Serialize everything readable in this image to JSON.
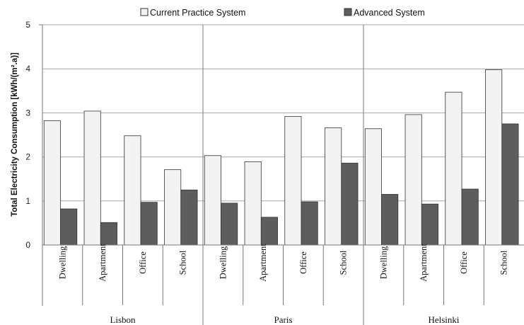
{
  "chart_data": {
    "type": "bar",
    "ylabel": "Total Electricity Consumption [kWh/(m².a)]",
    "ylim": [
      0,
      5
    ],
    "yticks": [
      "0",
      "1",
      "2",
      "3",
      "4",
      "5"
    ],
    "grid": "horizontal",
    "legend_position": "top",
    "groups": [
      {
        "name": "Lisbon",
        "categories": [
          "Dwelling",
          "Apartment",
          "Office",
          "School"
        ]
      },
      {
        "name": "Paris",
        "categories": [
          "Dwelling",
          "Apartment",
          "Office",
          "School"
        ]
      },
      {
        "name": "Helsinki",
        "categories": [
          "Dwelling",
          "Apartment",
          "Office",
          "School"
        ]
      }
    ],
    "series": [
      {
        "name": "Current Practice System",
        "color": "#f3f3f3",
        "values": [
          2.82,
          3.04,
          2.48,
          1.71,
          2.03,
          1.89,
          2.92,
          2.66,
          2.64,
          2.96,
          3.47,
          3.98
        ]
      },
      {
        "name": "Advanced System",
        "color": "#5d5d5d",
        "values": [
          0.82,
          0.51,
          0.97,
          1.25,
          0.95,
          0.63,
          0.98,
          1.86,
          1.15,
          0.93,
          1.27,
          2.75
        ]
      }
    ]
  }
}
